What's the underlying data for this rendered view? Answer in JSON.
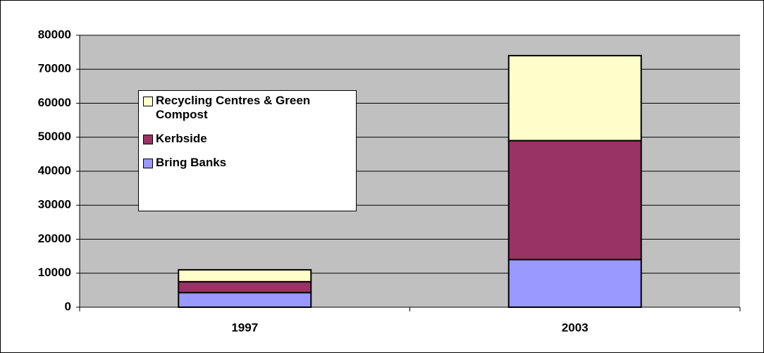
{
  "chart_data": {
    "type": "stacked_bar",
    "categories": [
      "1997",
      "2003"
    ],
    "series": [
      {
        "name": "Bring Banks",
        "color": "#9999ff",
        "values": [
          4300,
          14000
        ]
      },
      {
        "name": "Kerbside",
        "color": "#993366",
        "values": [
          3200,
          35000
        ]
      },
      {
        "name": "Recycling Centres & Green Compost",
        "color": "#ffffcc",
        "values": [
          3500,
          25000
        ]
      }
    ],
    "ylim": [
      0,
      80000
    ],
    "yticks": [
      0,
      10000,
      20000,
      30000,
      40000,
      50000,
      60000,
      70000,
      80000
    ],
    "grid": true,
    "plot_background": "#c0c0c0"
  }
}
